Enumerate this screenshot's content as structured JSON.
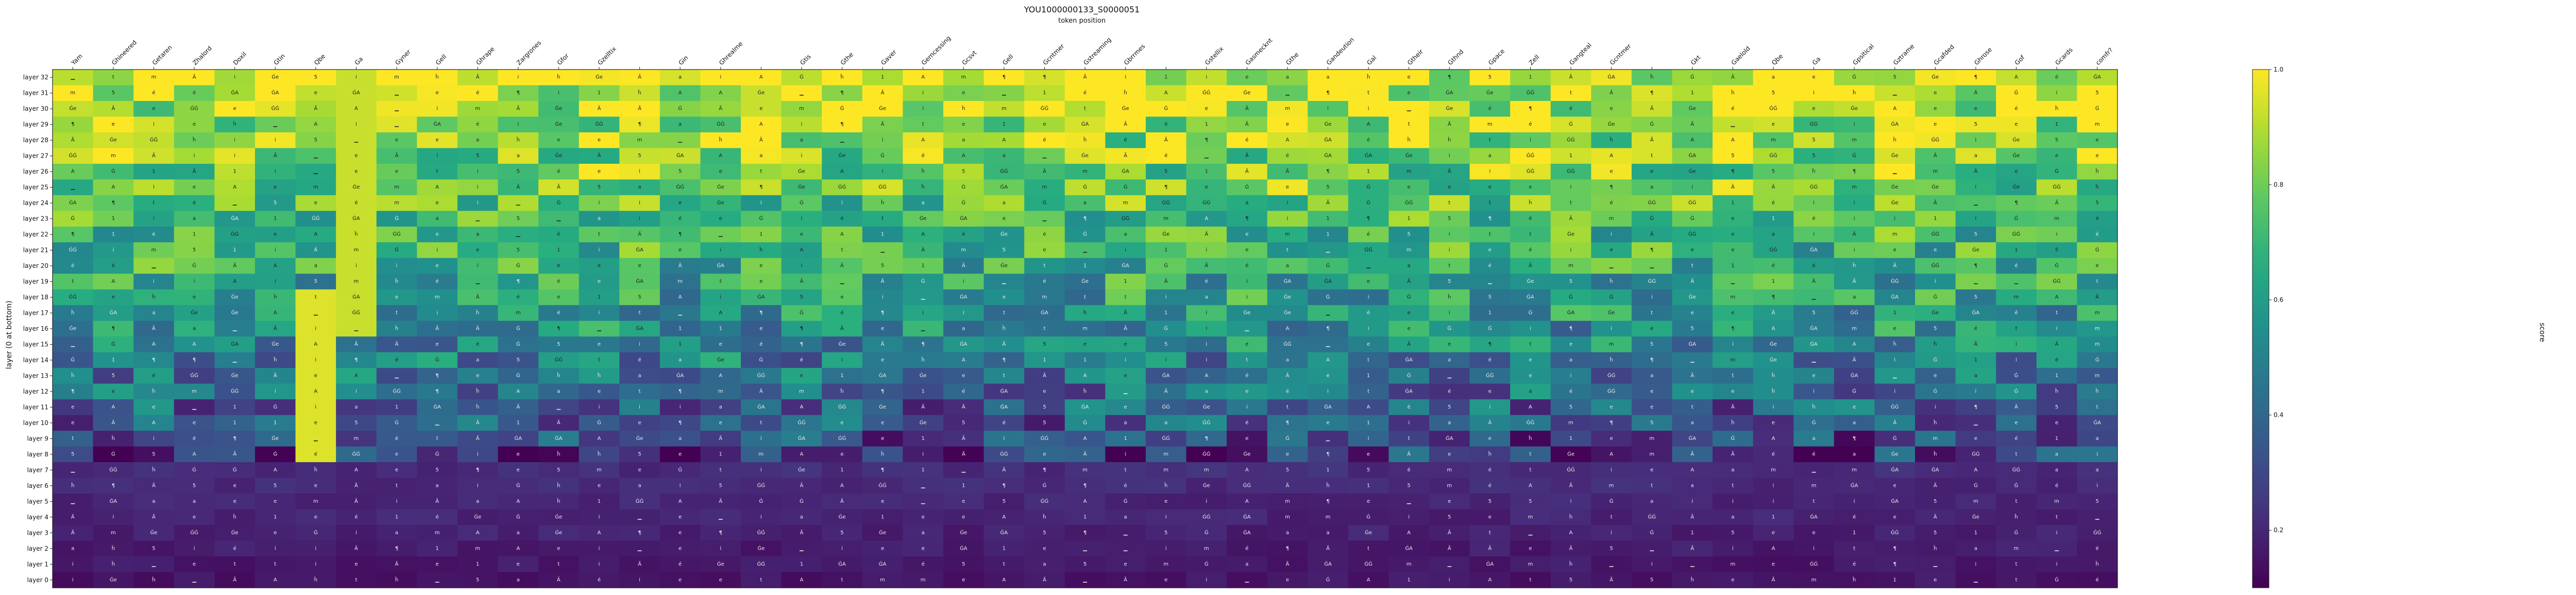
{
  "chart_data": {
    "type": "heatmap",
    "title": "YOU1000000133_S0000051",
    "subtitle": "token position",
    "ylabel": "layer (0 at bottom)",
    "colorbar_label": "score",
    "colormap": "viridis",
    "vmin": 0.1,
    "vmax": 1.0,
    "colorbar_ticks": [
      "0.2",
      "0.4",
      "0.6",
      "0.8",
      "1.0"
    ],
    "colorbar_tick_values": [
      0.2,
      0.4,
      0.6,
      0.8,
      1.0
    ],
    "x_tick_labels": [
      "Yam",
      "Ghineered",
      "Getaren",
      "Zhalord",
      "Doxil",
      "Gtin",
      "Qbe",
      "Ga",
      "Gyner",
      "Gell",
      "Ghrape",
      "Zargrones",
      "Gfor",
      "Gzelltix",
      "",
      "Gin",
      "Ghrealme",
      "",
      "Gtis",
      "Gthe",
      "Gaver",
      "Gerncessing",
      "Gcsvt",
      "Gell",
      "Gcntmer",
      "Gstreaming",
      "Gbrrmes",
      "",
      "Gstellix",
      "Gasmecknt",
      "Gthe",
      "Gandeution",
      "Gal",
      "Gtheir",
      "Gthnd",
      "Gpace",
      "Zell",
      "Gangteal",
      "Gcntmer",
      "",
      "Gkt",
      "Gaelold",
      "Qbe",
      "Ga",
      "Gpsitical",
      "Gztrame",
      "Gcafded",
      "Ghrose",
      "Gof",
      "Gcards",
      "comfr?"
    ],
    "y_tick_labels": [
      "layer 32",
      "layer 31",
      "layer 30",
      "layer 29",
      "layer 28",
      "layer 27",
      "layer 26",
      "layer 25",
      "layer 24",
      "layer 23",
      "layer 22",
      "layer 21",
      "layer 20",
      "layer 19",
      "layer 18",
      "layer 17",
      "layer 16",
      "layer 15",
      "layer 14",
      "layer 13",
      "layer 12",
      "layer 11",
      "layer 10",
      "layer 9",
      "layer 8",
      "layer 7",
      "layer 6",
      "layer 5",
      "layer 4",
      "layer 3",
      "layer 2",
      "layer 1",
      "layer 0"
    ],
    "cell_token_vocab": [
      "A",
      "Ġ",
      "Ä",
      "ĠA",
      "▁",
      "i",
      "i",
      "e",
      "ĠĠ",
      "ĥ",
      "Ä",
      "¶",
      "m",
      "a",
      "t",
      "1",
      "e",
      "5",
      "Ġe",
      "é"
    ],
    "grid_on": false,
    "layout": {
      "rows": 33,
      "cols": 51
    }
  }
}
